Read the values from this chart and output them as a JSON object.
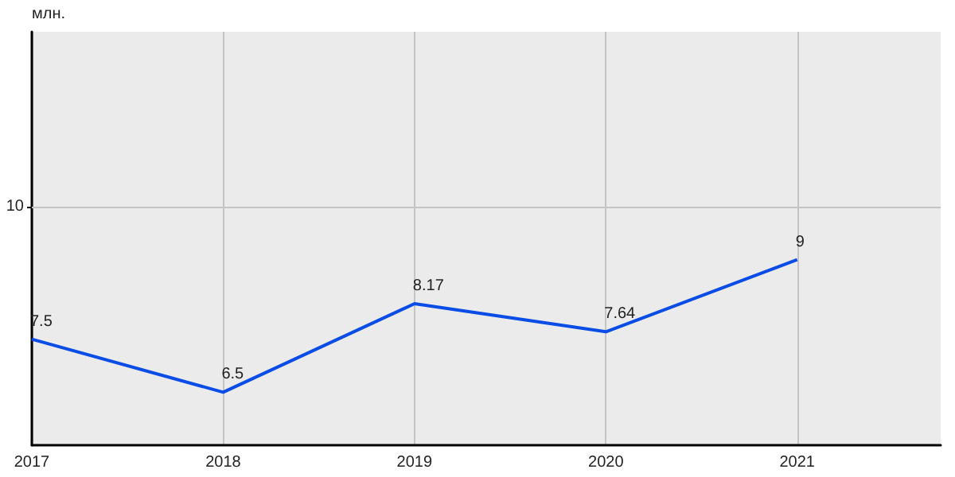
{
  "chart_data": {
    "type": "line",
    "ylabel": "млн.",
    "x": [
      2017,
      2018,
      2019,
      2020,
      2021
    ],
    "series": [
      {
        "color": "#0a4ce6",
        "values": [
          7.5,
          6.5,
          8.17,
          7.64,
          9
        ]
      }
    ],
    "xlim": [
      2017,
      2021.75
    ],
    "xticks": [
      2017,
      2018,
      2019,
      2020,
      2021
    ],
    "ylim": [
      5.5,
      13.3
    ],
    "ref_lines": [
      {
        "axis": "y",
        "value": 10,
        "label": "10",
        "color": "#c4c4c4"
      }
    ],
    "grid": true,
    "data_labels": true,
    "marker": "none"
  }
}
